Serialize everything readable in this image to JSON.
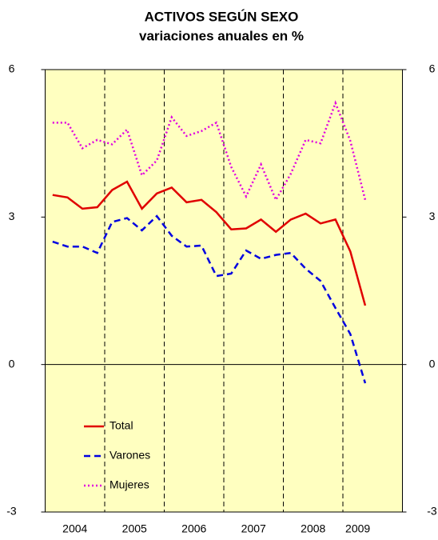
{
  "chart_data": {
    "type": "line",
    "title": "ACTIVOS SEGÚN SEXO",
    "subtitle": "variaciones anuales en %",
    "x": [
      2004.125,
      2004.375,
      2004.625,
      2004.875,
      2005.125,
      2005.375,
      2005.625,
      2005.875,
      2006.125,
      2006.375,
      2006.625,
      2006.875,
      2007.125,
      2007.375,
      2007.625,
      2007.875,
      2008.125,
      2008.375,
      2008.625,
      2008.875,
      2009.125,
      2009.375
    ],
    "series": [
      {
        "name": "Total",
        "color": "#e00000",
        "dash": "solid",
        "values": [
          3.45,
          3.4,
          3.17,
          3.2,
          3.55,
          3.72,
          3.17,
          3.48,
          3.6,
          3.3,
          3.35,
          3.1,
          2.75,
          2.77,
          2.95,
          2.7,
          2.95,
          3.07,
          2.87,
          2.95,
          2.3,
          1.2
        ]
      },
      {
        "name": "Varones",
        "color": "#0000e0",
        "dash": "dashed",
        "values": [
          2.5,
          2.4,
          2.4,
          2.27,
          2.9,
          2.98,
          2.73,
          3.02,
          2.62,
          2.4,
          2.42,
          1.8,
          1.85,
          2.32,
          2.15,
          2.23,
          2.27,
          1.95,
          1.7,
          1.15,
          0.62,
          -0.38
        ]
      },
      {
        "name": "Mujeres",
        "color": "#e000e0",
        "dash": "dotted",
        "values": [
          4.92,
          4.92,
          4.4,
          4.57,
          4.48,
          4.78,
          3.85,
          4.15,
          5.03,
          4.65,
          4.75,
          4.92,
          4.02,
          3.42,
          4.07,
          3.35,
          3.88,
          4.57,
          4.5,
          5.32,
          4.55,
          3.35
        ]
      }
    ],
    "xlim": [
      2004,
      2010
    ],
    "xticks": [
      {
        "value": 2004.5,
        "label": "2004"
      },
      {
        "value": 2005.5,
        "label": "2005"
      },
      {
        "value": 2006.5,
        "label": "2006"
      },
      {
        "value": 2007.5,
        "label": "2007"
      },
      {
        "value": 2008.5,
        "label": "2008"
      },
      {
        "value": 2009.25,
        "label": "2009"
      }
    ],
    "xgrid": [
      2005,
      2006,
      2007,
      2008,
      2009
    ],
    "ylim": [
      -3,
      6
    ],
    "yticks": [
      -3,
      0,
      3,
      6
    ],
    "y2lim": [
      -3,
      6
    ],
    "y2ticks": [
      -3,
      0,
      3,
      6
    ],
    "legend": "lower left",
    "background": "#ffffc0"
  }
}
